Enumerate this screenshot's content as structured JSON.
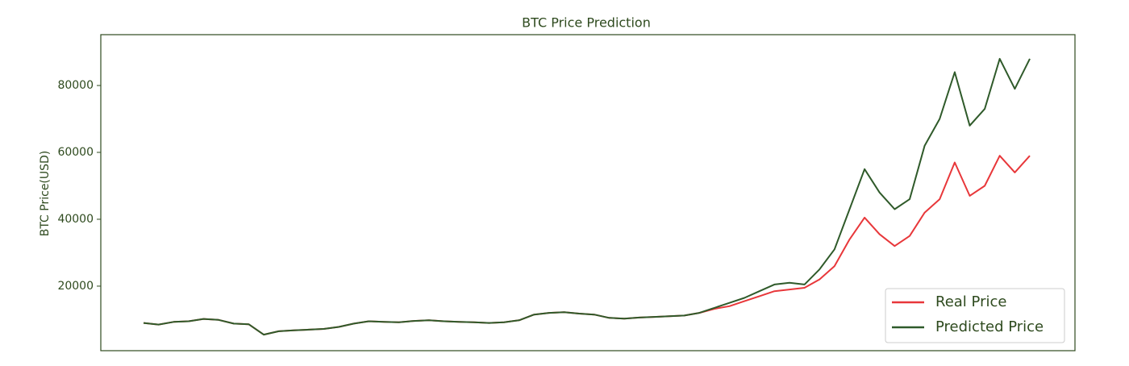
{
  "chart_data": {
    "type": "line",
    "title": "BTC Price Prediction",
    "y_label": "BTC Price(USD)",
    "ylim": [
      700,
      95200
    ],
    "yticks": [
      20000,
      40000,
      60000,
      80000
    ],
    "grid": false,
    "legend": "lower right",
    "series": [
      {
        "name": "Real Price",
        "color": "#e8373a",
        "values": [
          9000,
          8500,
          9300,
          9500,
          10200,
          9900,
          8800,
          8600,
          5500,
          6500,
          6800,
          7000,
          7200,
          7800,
          8800,
          9500,
          9300,
          9200,
          9600,
          9800,
          9500,
          9300,
          9200,
          9000,
          9200,
          9800,
          11500,
          12000,
          12200,
          11800,
          11500,
          10500,
          10300,
          10600,
          10800,
          11000,
          11200,
          12000,
          13200,
          14000,
          15500,
          17000,
          18500,
          19000,
          19500,
          22000,
          26000,
          34000,
          40500,
          35500,
          32000,
          35000,
          42000,
          46000,
          57000,
          47000,
          50000,
          59000,
          54000,
          59000
        ]
      },
      {
        "name": "Predicted Price",
        "color": "#2f5a2a",
        "values": [
          9000,
          8500,
          9300,
          9500,
          10200,
          9900,
          8800,
          8600,
          5500,
          6500,
          6800,
          7000,
          7200,
          7800,
          8800,
          9500,
          9300,
          9200,
          9600,
          9800,
          9500,
          9300,
          9200,
          9000,
          9200,
          9800,
          11500,
          12000,
          12200,
          11800,
          11500,
          10500,
          10300,
          10600,
          10800,
          11000,
          11200,
          12000,
          13500,
          15000,
          16500,
          18500,
          20500,
          21000,
          20500,
          25000,
          31000,
          43000,
          55000,
          48000,
          43000,
          46000,
          62000,
          70000,
          84000,
          68000,
          73000,
          88000,
          79000,
          88000
        ]
      }
    ]
  }
}
